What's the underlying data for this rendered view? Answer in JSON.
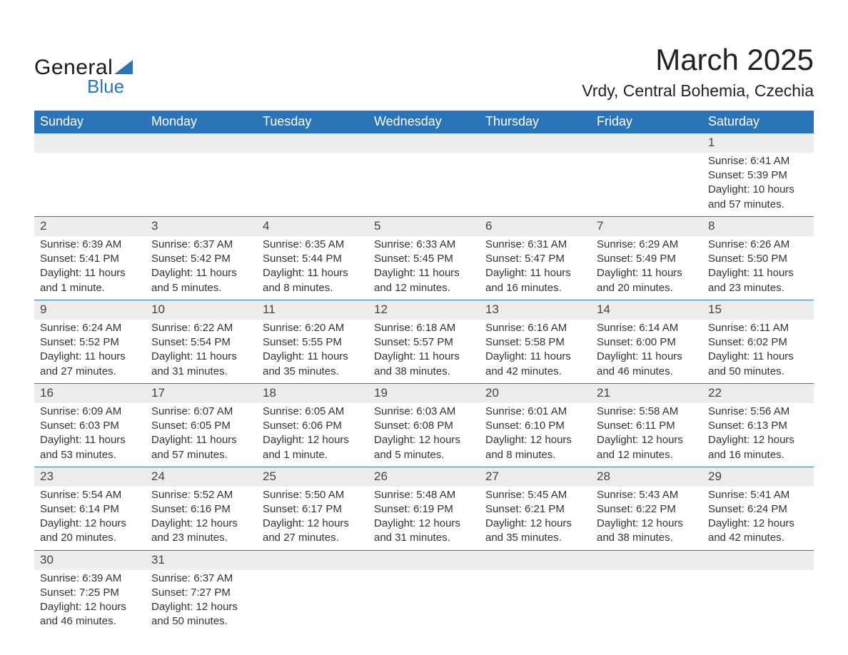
{
  "brand": {
    "word1": "General",
    "word2": "Blue",
    "accent_color": "#2a74b8",
    "text_color": "#1a1a1a"
  },
  "header": {
    "title": "March 2025",
    "location": "Vrdy, Central Bohemia, Czechia"
  },
  "styling": {
    "header_bg": "#2a74b8",
    "header_text": "#ffffff",
    "daynum_bg": "#ececec",
    "body_text": "#333333",
    "border_color": "#2a74b8",
    "page_bg": "#ffffff",
    "title_fontsize": 42,
    "location_fontsize": 23,
    "th_fontsize": 18,
    "cell_fontsize": 15
  },
  "weekdays": [
    "Sunday",
    "Monday",
    "Tuesday",
    "Wednesday",
    "Thursday",
    "Friday",
    "Saturday"
  ],
  "labels": {
    "sunrise": "Sunrise:",
    "sunset": "Sunset:",
    "daylight": "Daylight:"
  },
  "weeks": [
    [
      null,
      null,
      null,
      null,
      null,
      null,
      {
        "n": "1",
        "sunrise": "6:41 AM",
        "sunset": "5:39 PM",
        "daylight": "10 hours and 57 minutes."
      }
    ],
    [
      {
        "n": "2",
        "sunrise": "6:39 AM",
        "sunset": "5:41 PM",
        "daylight": "11 hours and 1 minute."
      },
      {
        "n": "3",
        "sunrise": "6:37 AM",
        "sunset": "5:42 PM",
        "daylight": "11 hours and 5 minutes."
      },
      {
        "n": "4",
        "sunrise": "6:35 AM",
        "sunset": "5:44 PM",
        "daylight": "11 hours and 8 minutes."
      },
      {
        "n": "5",
        "sunrise": "6:33 AM",
        "sunset": "5:45 PM",
        "daylight": "11 hours and 12 minutes."
      },
      {
        "n": "6",
        "sunrise": "6:31 AM",
        "sunset": "5:47 PM",
        "daylight": "11 hours and 16 minutes."
      },
      {
        "n": "7",
        "sunrise": "6:29 AM",
        "sunset": "5:49 PM",
        "daylight": "11 hours and 20 minutes."
      },
      {
        "n": "8",
        "sunrise": "6:26 AM",
        "sunset": "5:50 PM",
        "daylight": "11 hours and 23 minutes."
      }
    ],
    [
      {
        "n": "9",
        "sunrise": "6:24 AM",
        "sunset": "5:52 PM",
        "daylight": "11 hours and 27 minutes."
      },
      {
        "n": "10",
        "sunrise": "6:22 AM",
        "sunset": "5:54 PM",
        "daylight": "11 hours and 31 minutes."
      },
      {
        "n": "11",
        "sunrise": "6:20 AM",
        "sunset": "5:55 PM",
        "daylight": "11 hours and 35 minutes."
      },
      {
        "n": "12",
        "sunrise": "6:18 AM",
        "sunset": "5:57 PM",
        "daylight": "11 hours and 38 minutes."
      },
      {
        "n": "13",
        "sunrise": "6:16 AM",
        "sunset": "5:58 PM",
        "daylight": "11 hours and 42 minutes."
      },
      {
        "n": "14",
        "sunrise": "6:14 AM",
        "sunset": "6:00 PM",
        "daylight": "11 hours and 46 minutes."
      },
      {
        "n": "15",
        "sunrise": "6:11 AM",
        "sunset": "6:02 PM",
        "daylight": "11 hours and 50 minutes."
      }
    ],
    [
      {
        "n": "16",
        "sunrise": "6:09 AM",
        "sunset": "6:03 PM",
        "daylight": "11 hours and 53 minutes."
      },
      {
        "n": "17",
        "sunrise": "6:07 AM",
        "sunset": "6:05 PM",
        "daylight": "11 hours and 57 minutes."
      },
      {
        "n": "18",
        "sunrise": "6:05 AM",
        "sunset": "6:06 PM",
        "daylight": "12 hours and 1 minute."
      },
      {
        "n": "19",
        "sunrise": "6:03 AM",
        "sunset": "6:08 PM",
        "daylight": "12 hours and 5 minutes."
      },
      {
        "n": "20",
        "sunrise": "6:01 AM",
        "sunset": "6:10 PM",
        "daylight": "12 hours and 8 minutes."
      },
      {
        "n": "21",
        "sunrise": "5:58 AM",
        "sunset": "6:11 PM",
        "daylight": "12 hours and 12 minutes."
      },
      {
        "n": "22",
        "sunrise": "5:56 AM",
        "sunset": "6:13 PM",
        "daylight": "12 hours and 16 minutes."
      }
    ],
    [
      {
        "n": "23",
        "sunrise": "5:54 AM",
        "sunset": "6:14 PM",
        "daylight": "12 hours and 20 minutes."
      },
      {
        "n": "24",
        "sunrise": "5:52 AM",
        "sunset": "6:16 PM",
        "daylight": "12 hours and 23 minutes."
      },
      {
        "n": "25",
        "sunrise": "5:50 AM",
        "sunset": "6:17 PM",
        "daylight": "12 hours and 27 minutes."
      },
      {
        "n": "26",
        "sunrise": "5:48 AM",
        "sunset": "6:19 PM",
        "daylight": "12 hours and 31 minutes."
      },
      {
        "n": "27",
        "sunrise": "5:45 AM",
        "sunset": "6:21 PM",
        "daylight": "12 hours and 35 minutes."
      },
      {
        "n": "28",
        "sunrise": "5:43 AM",
        "sunset": "6:22 PM",
        "daylight": "12 hours and 38 minutes."
      },
      {
        "n": "29",
        "sunrise": "5:41 AM",
        "sunset": "6:24 PM",
        "daylight": "12 hours and 42 minutes."
      }
    ],
    [
      {
        "n": "30",
        "sunrise": "6:39 AM",
        "sunset": "7:25 PM",
        "daylight": "12 hours and 46 minutes."
      },
      {
        "n": "31",
        "sunrise": "6:37 AM",
        "sunset": "7:27 PM",
        "daylight": "12 hours and 50 minutes."
      },
      null,
      null,
      null,
      null,
      null
    ]
  ]
}
